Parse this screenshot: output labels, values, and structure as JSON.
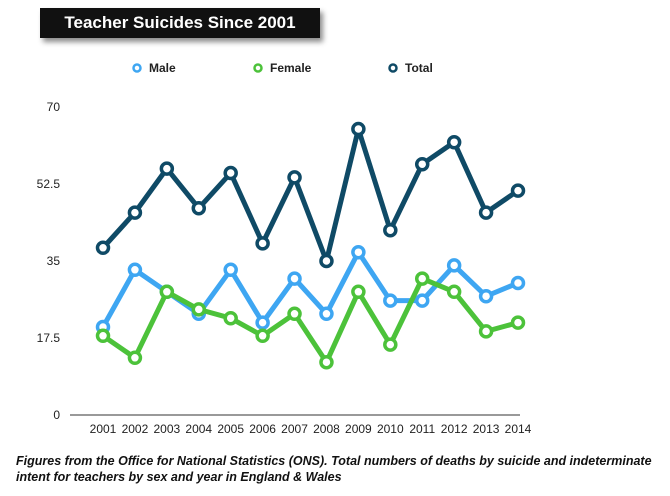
{
  "chart_data": {
    "type": "line",
    "title": "Teacher Suicides Since 2001",
    "x": [
      "2001",
      "2002",
      "2003",
      "2004",
      "2005",
      "2006",
      "2007",
      "2008",
      "2009",
      "2010",
      "2011",
      "2012",
      "2013",
      "2014"
    ],
    "ylim": [
      0,
      70
    ],
    "yticks": [
      "0",
      "17.5",
      "35",
      "52.5",
      "70"
    ],
    "legend_position": "top",
    "series": [
      {
        "name": "Male",
        "color": "#3ea6f2",
        "values": [
          20,
          33,
          28,
          23,
          33,
          21,
          31,
          23,
          37,
          26,
          26,
          34,
          27,
          30
        ]
      },
      {
        "name": "Female",
        "color": "#4cc23a",
        "values": [
          18,
          13,
          28,
          24,
          22,
          18,
          23,
          12,
          28,
          16,
          31,
          28,
          19,
          21
        ]
      },
      {
        "name": "Total",
        "color": "#0f4a66",
        "values": [
          38,
          46,
          56,
          47,
          55,
          39,
          54,
          35,
          65,
          42,
          57,
          62,
          46,
          51
        ]
      }
    ],
    "caption": "Figures from the Office for National Statistics (ONS). Total numbers of deaths by suicide and indeterminate intent for teachers by sex and year in England & Wales"
  }
}
